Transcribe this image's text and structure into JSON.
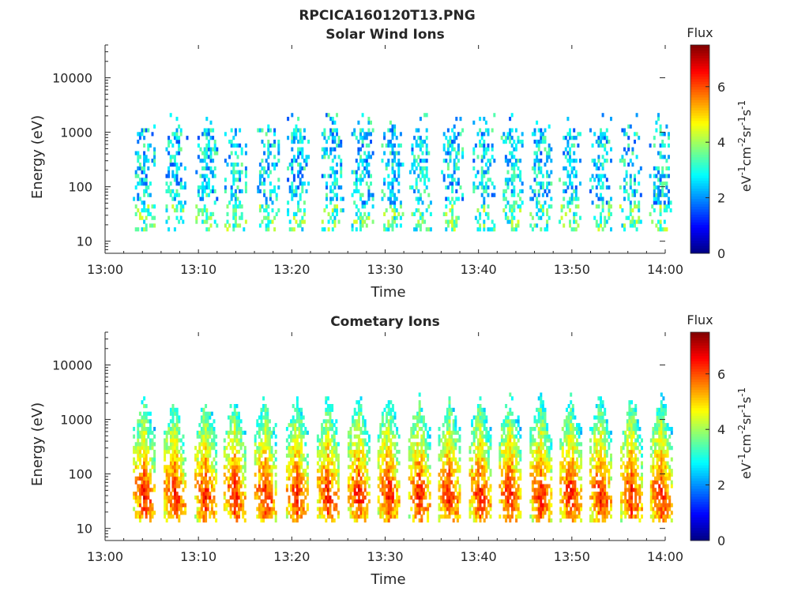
{
  "figure_title": "RPCICA160120T13.PNG",
  "chart_data": [
    {
      "type": "heatmap",
      "title": "Solar Wind Ions",
      "xlabel": "Time",
      "ylabel": "Energy (eV)",
      "x_ticks": [
        "13:00",
        "13:10",
        "13:20",
        "13:30",
        "13:40",
        "13:50",
        "14:00"
      ],
      "xlim": [
        "13:00",
        "14:00"
      ],
      "y_scale": "log",
      "y_ticks": [
        "10",
        "100",
        "1000",
        "10000"
      ],
      "ylim": [
        6,
        40000
      ],
      "colorbar": {
        "label": "Flux",
        "unit_label": "eV-1cm-2sr-1s-1",
        "ticks": [
          "0",
          "2",
          "4",
          "6"
        ],
        "range": [
          0,
          7.5
        ],
        "colormap": "jet"
      },
      "sweep_times_min": [
        4.2,
        7.7,
        10.9,
        14.0,
        17.5,
        20.7,
        24.4,
        27.6,
        30.8,
        33.8,
        37.2,
        40.6,
        43.6,
        46.7,
        49.8,
        53.1,
        56.3,
        59.5
      ],
      "sweep_energy_range_eV": [
        15,
        2000
      ],
      "flux_range_in_data": [
        1.0,
        4.5
      ],
      "typical_flux": 2.6
    },
    {
      "type": "heatmap",
      "title": "Cometary Ions",
      "xlabel": "Time",
      "ylabel": "Energy (eV)",
      "x_ticks": [
        "13:00",
        "13:10",
        "13:20",
        "13:30",
        "13:40",
        "13:50",
        "14:00"
      ],
      "xlim": [
        "13:00",
        "14:00"
      ],
      "y_scale": "log",
      "y_ticks": [
        "10",
        "100",
        "1000",
        "10000"
      ],
      "ylim": [
        6,
        40000
      ],
      "colorbar": {
        "label": "Flux",
        "unit_label": "eV-1cm-2sr-1s-1",
        "ticks": [
          "0",
          "2",
          "4",
          "6"
        ],
        "range": [
          0,
          7.5
        ],
        "colormap": "jet"
      },
      "sweep_times_min": [
        4.2,
        7.5,
        10.8,
        13.9,
        17.2,
        20.6,
        23.9,
        27.2,
        30.4,
        33.7,
        36.9,
        40.2,
        43.4,
        46.7,
        49.9,
        53.1,
        56.4,
        59.6
      ],
      "sweep_energy_range_eV": [
        12,
        2500
      ],
      "flux_range_in_data": [
        2.0,
        6.8
      ],
      "peak_flux_energy_eV": 40,
      "peak_flux": 6.5
    }
  ]
}
